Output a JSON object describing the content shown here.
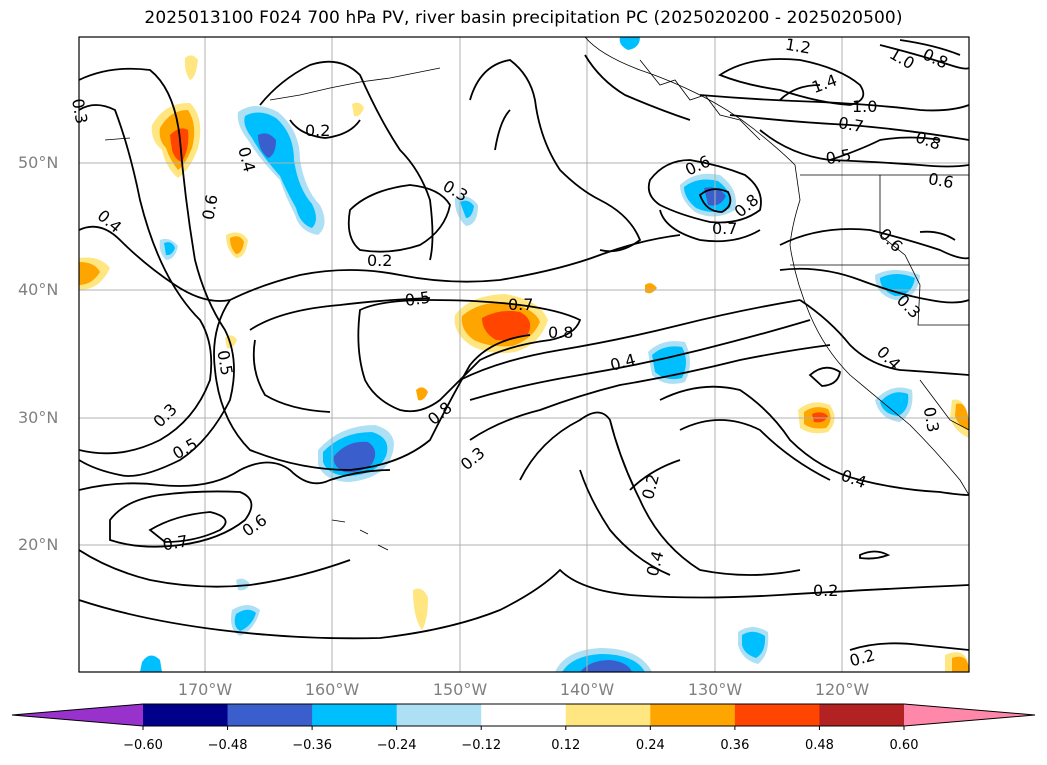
{
  "title": "2025013100 F024 700 hPa PV, river basin precipitation PC (2025020200 - 2025020500)",
  "axes": {
    "lat_labels": [
      "50°N",
      "40°N",
      "30°N",
      "20°N"
    ],
    "lon_labels": [
      "170°W",
      "160°W",
      "150°W",
      "140°W",
      "130°W",
      "120°W"
    ]
  },
  "contour_labels": [
    "0.2",
    "0.3",
    "0.4",
    "0.5",
    "0.6",
    "0.7",
    "0.8",
    "1.0",
    "1.2",
    "1.4"
  ],
  "colorbar": {
    "ticks": [
      "−0.60",
      "−0.48",
      "−0.36",
      "−0.24",
      "−0.12",
      "0.12",
      "0.24",
      "0.36",
      "0.48",
      "0.60"
    ],
    "colors": [
      "#9932CC",
      "#00008B",
      "#3A5FCD",
      "#00BFFF",
      "#ADE0F5",
      "#FFFFFF",
      "#FFE680",
      "#FFA500",
      "#FF4500",
      "#B22222",
      "#FF88AA"
    ]
  }
}
